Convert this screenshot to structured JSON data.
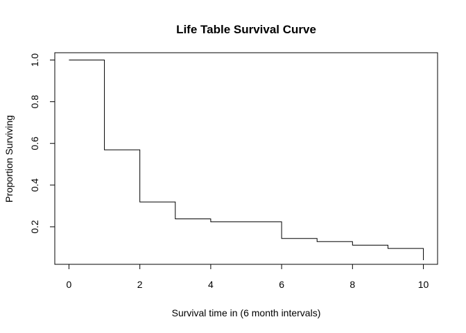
{
  "chart_data": {
    "type": "line",
    "style": "step",
    "title": "Life Table Survival Curve",
    "xlabel": "Survival time in (6 month intervals)",
    "ylabel": "Proportion Surviving",
    "xlim": [
      -0.4,
      10.4
    ],
    "ylim": [
      0.02,
      1.035
    ],
    "xticks": [
      0,
      2,
      4,
      6,
      8,
      10
    ],
    "xtick_labels": [
      "0",
      "2",
      "4",
      "6",
      "8",
      "10"
    ],
    "yticks": [
      0.2,
      0.4,
      0.6,
      0.8,
      1.0
    ],
    "ytick_labels": [
      "0.2",
      "0.4",
      "0.6",
      "0.8",
      "1.0"
    ],
    "grid": false,
    "legend": "none",
    "series": [
      {
        "x": [
          0,
          1,
          2,
          3,
          4,
          5,
          6,
          7,
          8,
          9,
          10
        ],
        "y": [
          1.0,
          0.569,
          0.319,
          0.238,
          0.224,
          0.224,
          0.144,
          0.129,
          0.112,
          0.096,
          0.04
        ]
      }
    ],
    "color": "#000000"
  }
}
